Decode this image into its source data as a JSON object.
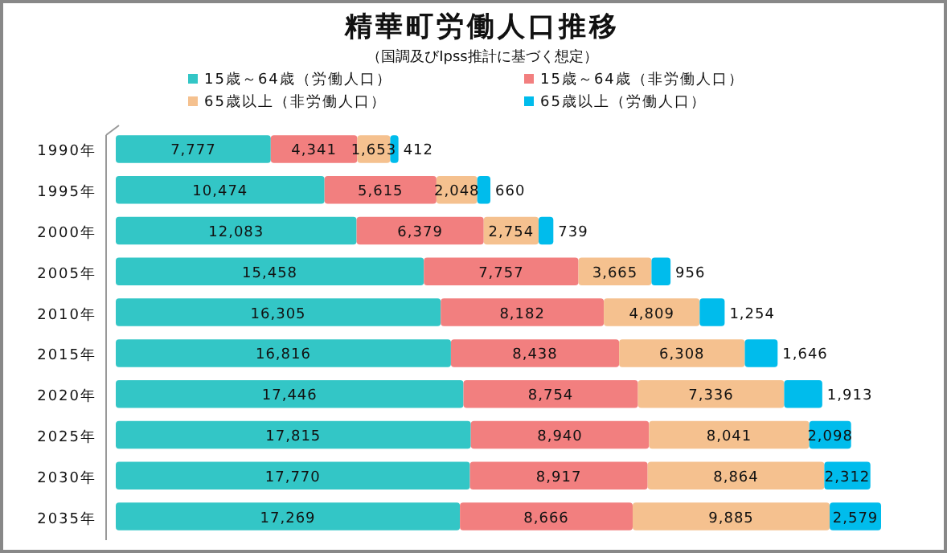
{
  "chart_data": {
    "type": "bar",
    "orientation": "horizontal",
    "stacked": true,
    "legend": "top",
    "title": "精華町労働人口推移",
    "subtitle": "（国調及びIpss推計に基づく想定）",
    "categories": [
      "1990年",
      "1995年",
      "2000年",
      "2005年",
      "2010年",
      "2015年",
      "2020年",
      "2025年",
      "2030年",
      "2035年"
    ],
    "series": [
      {
        "name": "15歳～64歳（労働人口）",
        "color": "#33c6c6",
        "values": [
          7777,
          10474,
          12083,
          15458,
          16305,
          16816,
          17446,
          17815,
          17770,
          17269
        ],
        "value_labels": [
          "7,777",
          "10,474",
          "12,083",
          "15,458",
          "16,305",
          "16,816",
          "17,446",
          "17,815",
          "17,770",
          "17,269"
        ]
      },
      {
        "name": "15歳～64歳（非労働人口）",
        "color": "#f27f7f",
        "values": [
          4341,
          5615,
          6379,
          7757,
          8182,
          8438,
          8754,
          8940,
          8917,
          8666
        ],
        "value_labels": [
          "4,341",
          "5,615",
          "6,379",
          "7,757",
          "8,182",
          "8,438",
          "8,754",
          "8,940",
          "8,917",
          "8,666"
        ]
      },
      {
        "name": "65歳以上（非労働人口）",
        "color": "#f5c18f",
        "values": [
          1653,
          2048,
          2754,
          3665,
          4809,
          6308,
          7336,
          8041,
          8864,
          9885
        ],
        "value_labels": [
          "1,653",
          "2,048",
          "2,754",
          "3,665",
          "4,809",
          "6,308",
          "7,336",
          "8,041",
          "8,864",
          "9,885"
        ]
      },
      {
        "name": "65歳以上（労働人口）",
        "color": "#00bcec",
        "values": [
          412,
          660,
          739,
          956,
          1254,
          1646,
          1913,
          2098,
          2312,
          2579
        ],
        "value_labels": [
          "412",
          "660",
          "739",
          "956",
          "1,254",
          "1,646",
          "1,913",
          "2,098",
          "2,312",
          "2,579"
        ]
      }
    ]
  }
}
